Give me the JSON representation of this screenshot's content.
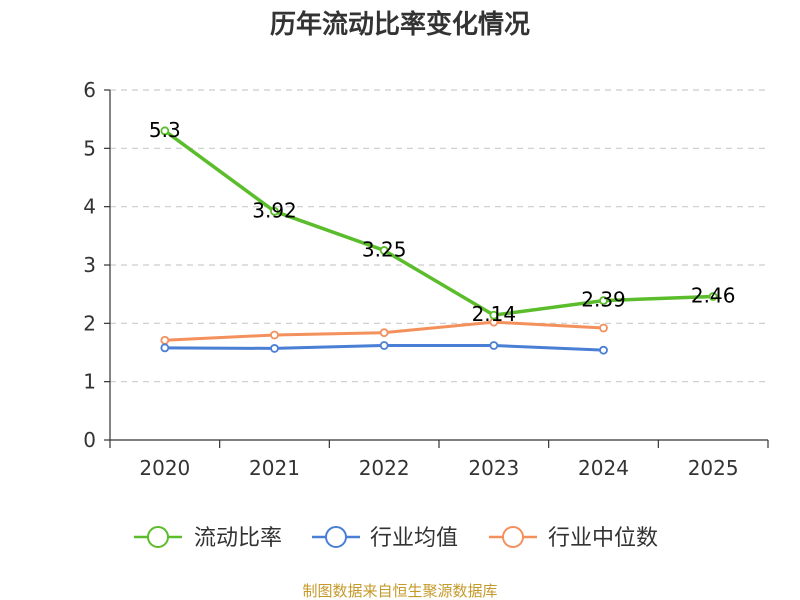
{
  "chart_data": {
    "type": "line",
    "title": "历年流动比率变化情况",
    "categories": [
      "2020",
      "2021",
      "2022",
      "2023",
      "2024",
      "2025"
    ],
    "ylim": [
      0,
      6
    ],
    "yticks": [
      0,
      1,
      2,
      3,
      4,
      5,
      6
    ],
    "grid": true,
    "legend_position": "bottom",
    "series": [
      {
        "name": "流动比率",
        "color": "#5bbd2b",
        "values": [
          5.3,
          3.92,
          3.25,
          2.14,
          2.39,
          2.46
        ],
        "labels": [
          "5.3",
          "3.92",
          "3.25",
          "2.14",
          "2.39",
          "2.46"
        ]
      },
      {
        "name": "行业均值",
        "color": "#4a7fd6",
        "values": [
          1.58,
          1.57,
          1.62,
          1.62,
          1.54,
          null
        ]
      },
      {
        "name": "行业中位数",
        "color": "#f4905c",
        "values": [
          1.71,
          1.8,
          1.84,
          2.02,
          1.92,
          null
        ]
      }
    ]
  },
  "source_text": "制图数据来自恒生聚源数据库"
}
